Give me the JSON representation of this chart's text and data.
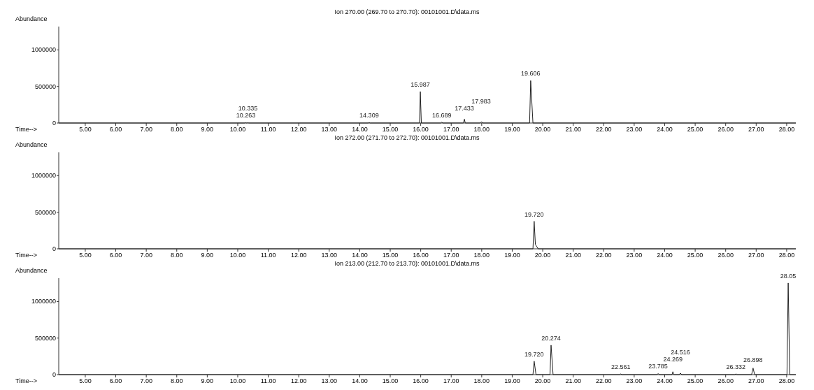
{
  "chart_data": [
    {
      "type": "line",
      "title": "Ion 270.00 (269.70 to 270.70): 00101001.D\\data.ms",
      "xlabel": "Time-->",
      "ylabel": "Abundance",
      "xlim": [
        4.13,
        28.3
      ],
      "ylim": [
        0,
        1320000
      ],
      "xticks": [
        {
          "value": 5,
          "label": "5.00"
        },
        {
          "value": 6,
          "label": "6.00"
        },
        {
          "value": 7,
          "label": "7.00"
        },
        {
          "value": 8,
          "label": "8.00"
        },
        {
          "value": 9,
          "label": "9.00"
        },
        {
          "value": 10,
          "label": "10.00"
        },
        {
          "value": 11,
          "label": "11.00"
        },
        {
          "value": 12,
          "label": "12.00"
        },
        {
          "value": 13,
          "label": "13.00"
        },
        {
          "value": 14,
          "label": "14.00"
        },
        {
          "value": 15,
          "label": "15.00"
        },
        {
          "value": 16,
          "label": "16.00"
        },
        {
          "value": 17,
          "label": "17.00"
        },
        {
          "value": 18,
          "label": "18.00"
        },
        {
          "value": 19,
          "label": "19.00"
        },
        {
          "value": 20,
          "label": "20.00"
        },
        {
          "value": 21,
          "label": "21.00"
        },
        {
          "value": 22,
          "label": "22.00"
        },
        {
          "value": 23,
          "label": "23.00"
        },
        {
          "value": 24,
          "label": "24.00"
        },
        {
          "value": 25,
          "label": "25.00"
        },
        {
          "value": 26,
          "label": "26.00"
        },
        {
          "value": 27,
          "label": "27.00"
        },
        {
          "value": 28,
          "label": "28.00"
        }
      ],
      "yticks": [
        0,
        500000,
        1000000
      ],
      "series": [
        {
          "color": "#222222",
          "x": [
            4.13,
            10.24,
            10.263,
            10.29,
            10.31,
            10.335,
            10.36,
            14.28,
            14.309,
            14.34,
            15.96,
            15.987,
            16.02,
            16.66,
            16.689,
            16.72,
            17.4,
            17.433,
            17.46,
            17.95,
            17.983,
            18.05,
            19.57,
            19.606,
            19.68,
            28.3
          ],
          "values": [
            0,
            0,
            5000,
            0,
            0,
            5000,
            0,
            0,
            5000,
            0,
            0,
            430000,
            0,
            0,
            10000,
            0,
            0,
            53000,
            0,
            0,
            15000,
            0,
            0,
            580000,
            0,
            0
          ]
        }
      ],
      "annotations": [
        {
          "text": "10.263",
          "x": 10.263,
          "y": 5000
        },
        {
          "text": "10.335",
          "x": 10.335,
          "y": 5000
        },
        {
          "text": "14.309",
          "x": 14.309,
          "y": 5000
        },
        {
          "text": "15.987",
          "x": 15.987,
          "y": 430000
        },
        {
          "text": "16.689",
          "x": 16.689,
          "y": 10000
        },
        {
          "text": "17.433",
          "x": 17.433,
          "y": 53000
        },
        {
          "text": "17.983",
          "x": 17.983,
          "y": 15000
        },
        {
          "text": "19.606",
          "x": 19.606,
          "y": 580000
        }
      ]
    },
    {
      "type": "line",
      "title": "Ion 272.00 (271.70 to 272.70): 00101001.D\\data.ms",
      "xlabel": "Time-->",
      "ylabel": "Abundance",
      "xlim": [
        4.13,
        28.3
      ],
      "ylim": [
        0,
        1320000
      ],
      "xticks": [
        {
          "value": 5,
          "label": "5.00"
        },
        {
          "value": 6,
          "label": "6.00"
        },
        {
          "value": 7,
          "label": "7.00"
        },
        {
          "value": 8,
          "label": "8.00"
        },
        {
          "value": 9,
          "label": "9.00"
        },
        {
          "value": 10,
          "label": "10.00"
        },
        {
          "value": 11,
          "label": "11.00"
        },
        {
          "value": 12,
          "label": "12.00"
        },
        {
          "value": 13,
          "label": "13.00"
        },
        {
          "value": 14,
          "label": "14.00"
        },
        {
          "value": 15,
          "label": "15.00"
        },
        {
          "value": 16,
          "label": "16.00"
        },
        {
          "value": 17,
          "label": "17.00"
        },
        {
          "value": 18,
          "label": "18.00"
        },
        {
          "value": 19,
          "label": "19.00"
        },
        {
          "value": 20,
          "label": "20.00"
        },
        {
          "value": 21,
          "label": "21.00"
        },
        {
          "value": 22,
          "label": "22.00"
        },
        {
          "value": 23,
          "label": "23.00"
        },
        {
          "value": 24,
          "label": "24.00"
        },
        {
          "value": 25,
          "label": "25.00"
        },
        {
          "value": 26,
          "label": "26.00"
        },
        {
          "value": 27,
          "label": "27.00"
        },
        {
          "value": 28,
          "label": "28.00"
        }
      ],
      "yticks": [
        0,
        500000,
        1000000
      ],
      "series": [
        {
          "color": "#222222",
          "x": [
            4.13,
            19.68,
            19.72,
            19.76,
            19.85,
            28.3
          ],
          "values": [
            0,
            0,
            377000,
            60000,
            0,
            0
          ]
        }
      ],
      "annotations": [
        {
          "text": "19.720",
          "x": 19.72,
          "y": 377000
        }
      ]
    },
    {
      "type": "line",
      "title": "Ion 213.00 (212.70 to 213.70): 00101001.D\\data.ms",
      "xlabel": "Time-->",
      "ylabel": "Abundance",
      "xlim": [
        4.13,
        28.3
      ],
      "ylim": [
        0,
        1320000
      ],
      "xticks": [
        {
          "value": 5,
          "label": "5.00"
        },
        {
          "value": 6,
          "label": "6.00"
        },
        {
          "value": 7,
          "label": "7.00"
        },
        {
          "value": 8,
          "label": "8.00"
        },
        {
          "value": 9,
          "label": "9.00"
        },
        {
          "value": 10,
          "label": "10.00"
        },
        {
          "value": 11,
          "label": "11.00"
        },
        {
          "value": 12,
          "label": "12.00"
        },
        {
          "value": 13,
          "label": "13.00"
        },
        {
          "value": 14,
          "label": "14.00"
        },
        {
          "value": 15,
          "label": "15.00"
        },
        {
          "value": 16,
          "label": "16.00"
        },
        {
          "value": 17,
          "label": "17.00"
        },
        {
          "value": 18,
          "label": "18.00"
        },
        {
          "value": 19,
          "label": "19.00"
        },
        {
          "value": 20,
          "label": "20.00"
        },
        {
          "value": 21,
          "label": "21.00"
        },
        {
          "value": 22,
          "label": "22.00"
        },
        {
          "value": 23,
          "label": "23.00"
        },
        {
          "value": 24,
          "label": "24.00"
        },
        {
          "value": 25,
          "label": "25.00"
        },
        {
          "value": 26,
          "label": "26.00"
        },
        {
          "value": 27,
          "label": "27.00"
        },
        {
          "value": 28,
          "label": "28.00"
        }
      ],
      "yticks": [
        0,
        500000,
        1000000
      ],
      "series": [
        {
          "color": "#222222",
          "x": [
            4.13,
            19.68,
            19.72,
            19.78,
            20.24,
            20.274,
            20.34,
            22.53,
            22.561,
            22.6,
            23.75,
            23.785,
            23.82,
            24.24,
            24.269,
            24.3,
            24.48,
            24.516,
            24.56,
            26.3,
            26.332,
            26.37,
            26.85,
            26.898,
            26.95,
            28.01,
            28.05,
            28.1,
            28.3
          ],
          "values": [
            0,
            0,
            184000,
            0,
            0,
            403000,
            0,
            0,
            10000,
            0,
            0,
            15000,
            0,
            0,
            40000,
            0,
            0,
            20000,
            0,
            0,
            10000,
            0,
            0,
            90000,
            0,
            0,
            1254000,
            0,
            0
          ]
        }
      ],
      "annotations": [
        {
          "text": "19.720",
          "x": 19.72,
          "y": 184000
        },
        {
          "text": "20.274",
          "x": 20.274,
          "y": 403000
        },
        {
          "text": "22.561",
          "x": 22.561,
          "y": 10000
        },
        {
          "text": "23.785",
          "x": 23.785,
          "y": 15000
        },
        {
          "text": "24.269",
          "x": 24.269,
          "y": 40000
        },
        {
          "text": "24.516",
          "x": 24.516,
          "y": 20000
        },
        {
          "text": "26.332",
          "x": 26.332,
          "y": 10000
        },
        {
          "text": "26.898",
          "x": 26.898,
          "y": 90000
        },
        {
          "text": "28.05",
          "x": 28.05,
          "y": 1254000
        }
      ]
    }
  ]
}
